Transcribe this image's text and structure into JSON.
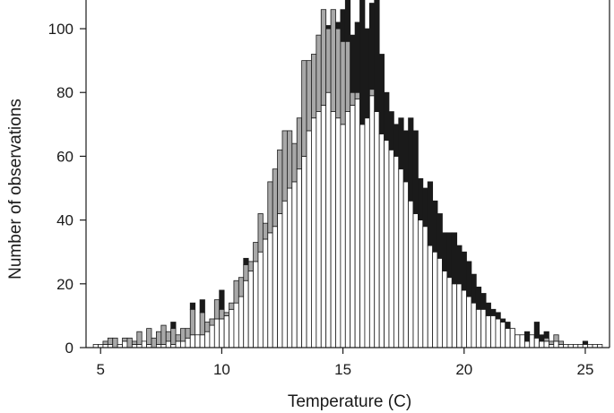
{
  "chart_data": {
    "type": "bar",
    "xlabel": "Temperature (C)",
    "ylabel": "Number of observations",
    "xlim": [
      4.4,
      26.0
    ],
    "ylim": [
      0,
      109
    ],
    "xticks": [
      "5",
      "10",
      "15",
      "20",
      "25"
    ],
    "yticks": [
      "0",
      "20",
      "40",
      "60",
      "80",
      "100"
    ],
    "bin_width": 0.2,
    "series": [
      {
        "color": "#ffffff",
        "stroke": "#1a1a1a"
      },
      {
        "color": "#a8a8a8",
        "stroke": "#1a1a1a"
      },
      {
        "color": "#1a1a1a",
        "stroke": "#1a1a1a"
      }
    ],
    "x": [
      4.8,
      5.0,
      5.2,
      5.4,
      5.6,
      5.8,
      6.0,
      6.2,
      6.4,
      6.6,
      6.8,
      7.0,
      7.2,
      7.4,
      7.6,
      7.8,
      8.0,
      8.2,
      8.4,
      8.6,
      8.8,
      9.0,
      9.2,
      9.4,
      9.6,
      9.8,
      10.0,
      10.2,
      10.4,
      10.6,
      10.8,
      11.0,
      11.2,
      11.4,
      11.6,
      11.8,
      12.0,
      12.2,
      12.4,
      12.6,
      12.8,
      13.0,
      13.2,
      13.4,
      13.6,
      13.8,
      14.0,
      14.2,
      14.4,
      14.6,
      14.8,
      15.0,
      15.2,
      15.4,
      15.6,
      15.8,
      16.0,
      16.2,
      16.4,
      16.6,
      16.8,
      17.0,
      17.2,
      17.4,
      17.6,
      17.8,
      18.0,
      18.2,
      18.4,
      18.6,
      18.8,
      19.0,
      19.2,
      19.4,
      19.6,
      19.8,
      20.0,
      20.2,
      20.4,
      20.6,
      20.8,
      21.0,
      21.2,
      21.4,
      21.6,
      21.8,
      22.0,
      22.2,
      22.4,
      22.6,
      22.8,
      23.0,
      23.2,
      23.4,
      23.6,
      23.8,
      24.0,
      24.2,
      24.4,
      24.6,
      24.8,
      25.0,
      25.2,
      25.4,
      25.6
    ],
    "white": [
      1,
      1,
      1,
      1,
      0,
      1,
      2,
      0,
      1,
      1,
      2,
      1,
      0,
      1,
      1,
      2,
      1,
      2,
      2,
      3,
      4,
      4,
      4,
      5,
      7,
      9,
      9,
      10,
      12,
      14,
      16,
      21,
      24,
      27,
      30,
      34,
      36,
      38,
      42,
      46,
      50,
      52,
      56,
      60,
      68,
      72,
      74,
      76,
      80,
      74,
      72,
      70,
      74,
      76,
      78,
      70,
      72,
      79,
      74,
      67,
      65,
      62,
      60,
      56,
      52,
      46,
      42,
      40,
      38,
      32,
      30,
      28,
      24,
      22,
      20,
      20,
      18,
      16,
      14,
      12,
      12,
      10,
      10,
      9,
      8,
      6,
      6,
      4,
      4,
      2,
      4,
      3,
      2,
      2,
      1,
      2,
      1,
      1,
      1,
      1,
      1,
      1,
      1,
      1,
      1
    ],
    "gray": [
      0,
      0,
      1,
      2,
      3,
      0,
      1,
      3,
      1,
      4,
      0,
      5,
      3,
      4,
      6,
      3,
      5,
      2,
      4,
      3,
      8,
      0,
      7,
      3,
      2,
      6,
      3,
      1,
      2,
      7,
      6,
      5,
      3,
      6,
      12,
      5,
      16,
      18,
      20,
      22,
      18,
      12,
      16,
      30,
      22,
      20,
      24,
      30,
      20,
      32,
      28,
      26,
      22,
      4,
      2,
      0,
      0,
      2,
      0,
      0,
      0,
      0,
      0,
      0,
      0,
      0,
      0,
      0,
      0,
      0,
      0,
      0,
      0,
      0,
      0,
      0,
      0,
      0,
      0,
      0,
      0,
      0,
      0,
      0,
      0,
      0,
      0,
      0,
      0,
      0,
      0,
      0,
      0,
      1,
      1,
      2,
      1,
      0,
      0,
      0,
      0,
      0,
      0,
      0,
      0
    ],
    "black": [
      0,
      0,
      0,
      0,
      0,
      0,
      0,
      0,
      0,
      0,
      0,
      0,
      0,
      0,
      0,
      0,
      2,
      0,
      0,
      0,
      2,
      0,
      4,
      0,
      0,
      0,
      6,
      0,
      0,
      0,
      0,
      2,
      0,
      0,
      0,
      0,
      0,
      0,
      0,
      0,
      0,
      0,
      0,
      0,
      0,
      0,
      0,
      0,
      1,
      0,
      2,
      10,
      14,
      18,
      22,
      39,
      28,
      27,
      40,
      25,
      15,
      12,
      10,
      16,
      16,
      26,
      26,
      13,
      12,
      20,
      16,
      14,
      12,
      14,
      16,
      12,
      12,
      11,
      9,
      7,
      5,
      4,
      2,
      2,
      1,
      2,
      0,
      0,
      0,
      3,
      0,
      5,
      2,
      2,
      0,
      0,
      0,
      0,
      0,
      0,
      0,
      1,
      0,
      0,
      0
    ]
  }
}
